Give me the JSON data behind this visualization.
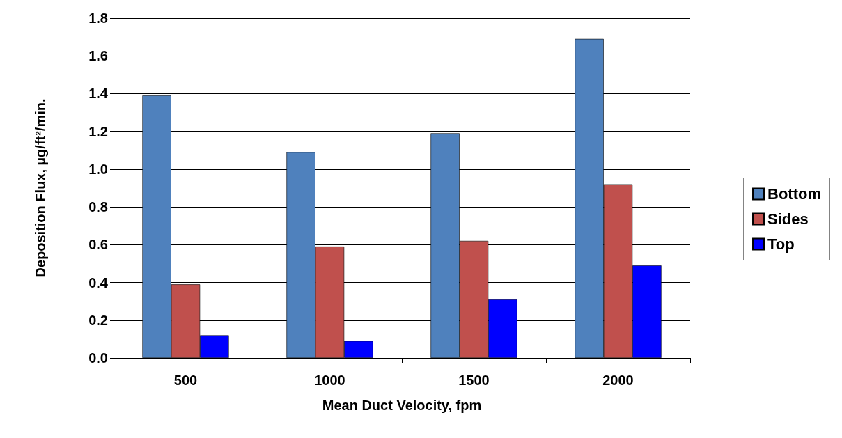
{
  "chart_data": {
    "type": "bar",
    "xlabel": "Mean Duct Velocity, fpm",
    "ylabel": "Deposition Flux, µg/ft²/min.",
    "categories": [
      "500",
      "1000",
      "1500",
      "2000"
    ],
    "series": [
      {
        "name": "Bottom",
        "color": "#4f81bd",
        "values": [
          1.39,
          1.09,
          1.19,
          1.69
        ]
      },
      {
        "name": "Sides",
        "color": "#c0504d",
        "values": [
          0.39,
          0.59,
          0.62,
          0.92
        ]
      },
      {
        "name": "Top",
        "color": "#0000ff",
        "values": [
          0.12,
          0.09,
          0.31,
          0.49
        ]
      }
    ],
    "ylim": [
      0,
      1.8
    ],
    "yticks": [
      {
        "value": 0,
        "label": "0.0"
      },
      {
        "value": 0.2,
        "label": "0.2"
      },
      {
        "value": 0.4,
        "label": "0.4"
      },
      {
        "value": 0.6,
        "label": "0.6"
      },
      {
        "value": 0.8,
        "label": "0.8"
      },
      {
        "value": 1,
        "label": "1.0"
      },
      {
        "value": 1.2,
        "label": "1.2"
      },
      {
        "value": 1.4,
        "label": "1.4"
      },
      {
        "value": 1.6,
        "label": "1.6"
      },
      {
        "value": 1.8,
        "label": "1.8"
      }
    ],
    "grid": "y",
    "legend": "right"
  }
}
